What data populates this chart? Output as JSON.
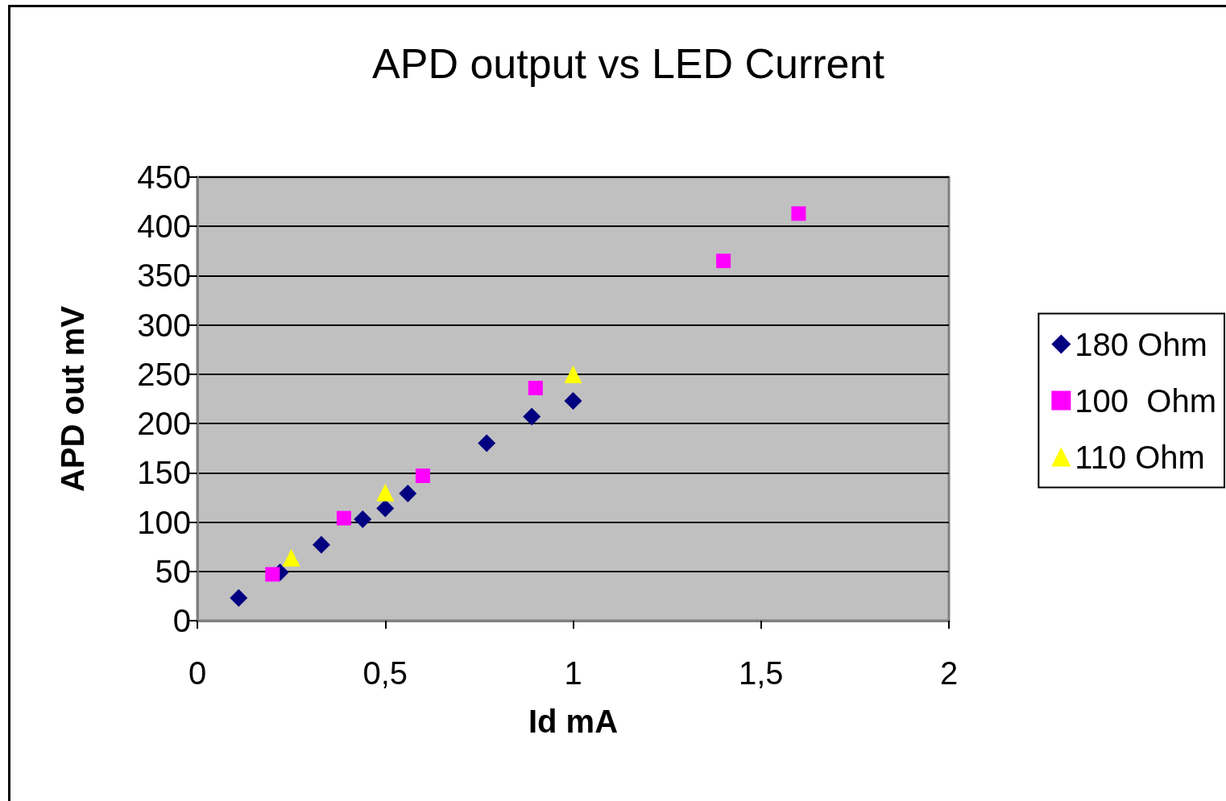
{
  "chart_data": {
    "type": "scatter",
    "title": "APD output vs LED Current",
    "xlabel": "Id mA",
    "ylabel": "APD out mV",
    "xlim": [
      0,
      2
    ],
    "xticks": [
      0,
      {
        "value": 0.5,
        "label": "0,5"
      },
      1,
      {
        "value": 1.5,
        "label": "1,5"
      },
      2
    ],
    "ylim": [
      0,
      450
    ],
    "yticks": [
      0,
      50,
      100,
      150,
      200,
      250,
      300,
      350,
      400,
      450
    ],
    "grid": "y",
    "legend": "right",
    "series": [
      {
        "name": "180 Ohm",
        "color": "#000080",
        "marker": "diamond",
        "x": [
          0.11,
          0.22,
          0.33,
          0.44,
          0.5,
          0.56,
          0.77,
          0.89,
          1.0
        ],
        "values": [
          23,
          49,
          77,
          103,
          114,
          129,
          180,
          207,
          223
        ]
      },
      {
        "name": "100  Ohm",
        "color": "#ff00ff",
        "marker": "square",
        "x": [
          0.2,
          0.39,
          0.6,
          0.9,
          1.4,
          1.6
        ],
        "values": [
          47,
          104,
          147,
          236,
          365,
          413
        ]
      },
      {
        "name": "110 Ohm",
        "color": "#ffff00",
        "marker": "triangle",
        "x": [
          0.25,
          0.5,
          1.0
        ],
        "values": [
          64,
          130,
          250
        ]
      }
    ]
  }
}
